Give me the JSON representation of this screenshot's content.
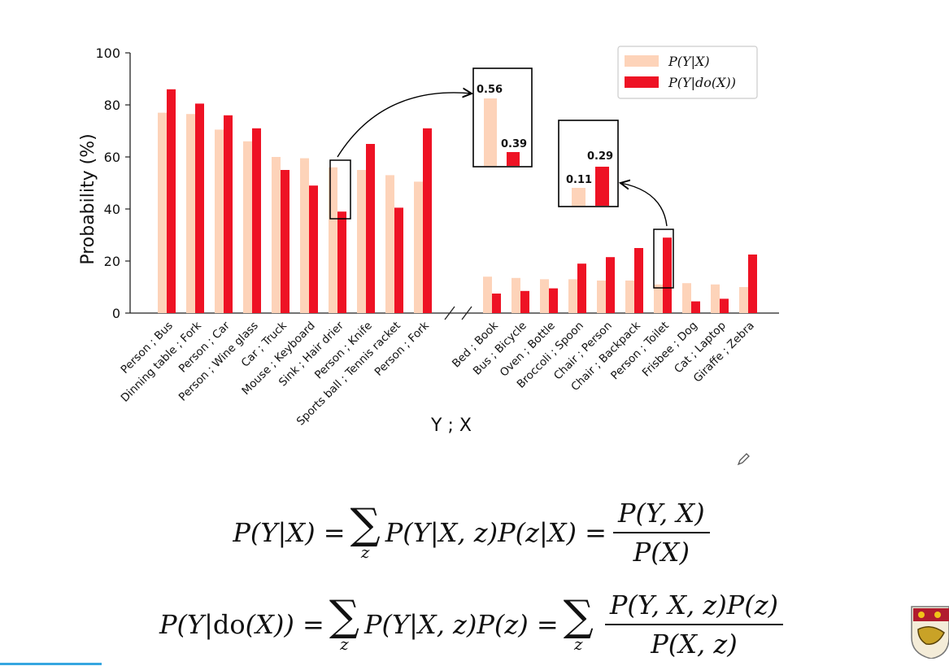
{
  "chart_data": {
    "type": "bar",
    "ylabel": "Probability (%)",
    "xlabel": "Y ; X",
    "ylim": [
      0,
      100
    ],
    "yticks": [
      0,
      20,
      40,
      60,
      80,
      100
    ],
    "grid": false,
    "legend_position": "top-right",
    "categories": [
      "Person ; Bus",
      "Dinning table ; Fork",
      "Person ; Car",
      "Person ; Wine glass",
      "Car ; Truck",
      "Mouse ; Keyboard",
      "Sink ; Hair drier",
      "Person ; Knife",
      "Sports ball ; Tennis racket",
      "Person ; Fork",
      "Bed ; Book",
      "Bus ; Bicycle",
      "Oven ; Bottle",
      "Broccoli ; Spoon",
      "Chair ; Person",
      "Chair ; Backpack",
      "Person ; Toilet",
      "Frisbee ; Dog",
      "Cat ; Laptop",
      "Giraffe ; Zebra"
    ],
    "series": [
      {
        "name": "P(Y|X)",
        "color": "#fdd3b9",
        "values": [
          77,
          76.5,
          70.5,
          66,
          60,
          59.5,
          56,
          55,
          53,
          50.5,
          14,
          13.5,
          13,
          13,
          12.5,
          12.5,
          11,
          11.5,
          11,
          10
        ]
      },
      {
        "name": "P(Y|do(X))",
        "color": "#ee1224",
        "values": [
          86,
          80.5,
          76,
          71,
          55,
          49,
          39,
          65,
          40.5,
          71,
          7.5,
          8.5,
          9.5,
          19,
          21.5,
          25,
          29,
          4.5,
          5.5,
          22.5
        ]
      }
    ],
    "annotations": [
      {
        "category": "Sink ; Hair drier",
        "labels": [
          "0.56",
          "0.39"
        ]
      },
      {
        "category": "Person ; Toilet",
        "labels": [
          "0.11",
          "0.29"
        ]
      }
    ]
  }
}
